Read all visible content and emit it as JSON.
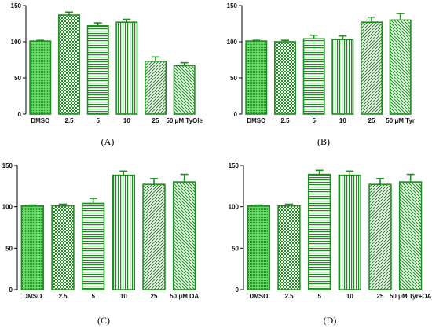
{
  "chart_data": [
    {
      "type": "bar",
      "panel_label": "(A)",
      "categories": [
        "DMSO",
        "2.5",
        "5",
        "10",
        "25",
        "50 μM TyOle"
      ],
      "values": [
        101,
        137,
        122,
        127,
        73,
        67
      ],
      "errors": [
        1,
        4,
        4,
        4,
        6,
        4
      ],
      "patterns": [
        "dense",
        "check",
        "hstripe",
        "vstripe",
        "diag",
        "diag2"
      ],
      "yticks": [
        0,
        50,
        100,
        150
      ],
      "ylim": [
        0,
        150
      ]
    },
    {
      "type": "bar",
      "panel_label": "(B)",
      "categories": [
        "DMSO",
        "2.5",
        "5",
        "10",
        "25",
        "50 μM Tyr"
      ],
      "values": [
        101,
        100,
        104,
        103,
        127,
        130
      ],
      "errors": [
        1,
        2,
        5,
        5,
        7,
        9
      ],
      "patterns": [
        "dense",
        "check",
        "hstripe",
        "vstripe",
        "diag",
        "diag2"
      ],
      "yticks": [
        0,
        50,
        100,
        150
      ],
      "ylim": [
        0,
        150
      ]
    },
    {
      "type": "bar",
      "panel_label": "(C)",
      "categories": [
        "DMSO",
        "2.5",
        "5",
        "10",
        "25",
        "50 μM OA"
      ],
      "values": [
        101,
        101,
        104,
        138,
        127,
        130
      ],
      "errors": [
        1,
        2,
        6,
        5,
        7,
        9
      ],
      "patterns": [
        "dense",
        "check",
        "hstripe",
        "vstripe",
        "diag",
        "diag2"
      ],
      "yticks": [
        0,
        50,
        100,
        150
      ],
      "ylim": [
        0,
        150
      ]
    },
    {
      "type": "bar",
      "panel_label": "(D)",
      "categories": [
        "DMSO",
        "2.5",
        "5",
        "10",
        "25",
        "50 μM Tyr+OA"
      ],
      "values": [
        101,
        101,
        139,
        138,
        127,
        130
      ],
      "errors": [
        1,
        2,
        5,
        5,
        7,
        9
      ],
      "patterns": [
        "dense",
        "check",
        "hstripe",
        "vstripe",
        "diag",
        "diag2"
      ],
      "yticks": [
        0,
        50,
        100,
        150
      ],
      "ylim": [
        0,
        150
      ]
    }
  ],
  "colors": {
    "bar": "#1e8f1e",
    "axis": "#000000"
  }
}
